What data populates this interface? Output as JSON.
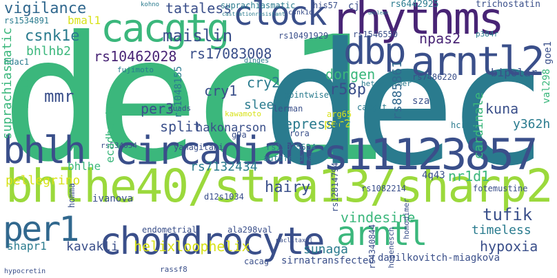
{
  "palette": {
    "teal": "#2a7b8e",
    "green": "#3bb77c",
    "lime": "#9bd93c",
    "purple": "#482475",
    "navy": "#3a4f8a",
    "blue": "#31688e",
    "yellow": "#d8e219"
  },
  "words": [
    {
      "id": "dec1",
      "text": "dec1",
      "color": "green"
    },
    {
      "id": "dec",
      "text": "dec",
      "color": "teal"
    },
    {
      "id": "bhlhe40",
      "text": "bhlhe40/stra13/sharp2",
      "color": "lime"
    },
    {
      "id": "rs11123857",
      "text": "rs11123857",
      "color": "navy"
    },
    {
      "id": "rhythms",
      "text": "rhythms",
      "color": "purple"
    },
    {
      "id": "clock",
      "text": "clock",
      "color": "navy"
    },
    {
      "id": "cacgtg",
      "text": "cacgtg",
      "color": "green"
    },
    {
      "id": "arntl2",
      "text": "arntl2",
      "color": "navy"
    },
    {
      "id": "circadian",
      "text": "circadian",
      "color": "navy"
    },
    {
      "id": "chondrocyte",
      "text": "chondrocyte",
      "color": "navy"
    },
    {
      "id": "dbp",
      "text": "dbp",
      "color": "navy"
    },
    {
      "id": "bhlh",
      "text": "bhlh",
      "color": "navy"
    },
    {
      "id": "per1",
      "text": "per1",
      "color": "blue"
    },
    {
      "id": "arntl",
      "text": "arntl",
      "color": "green"
    },
    {
      "id": "vigilance",
      "text": "vigilance",
      "color": "blue"
    },
    {
      "id": "tataless",
      "text": "tataless",
      "color": "navy"
    },
    {
      "id": "suprachiasmatic_top",
      "text": "suprachiasmatic",
      "color": "teal"
    },
    {
      "id": "csnk1d",
      "text": "csnk1d",
      "color": "navy"
    },
    {
      "id": "his57",
      "text": "his57",
      "color": "navy"
    },
    {
      "id": "cj",
      "text": "cj",
      "color": "navy"
    },
    {
      "id": "rs6442925",
      "text": "rs6442925",
      "color": "teal"
    },
    {
      "id": "trichostatin",
      "text": "trichostatin",
      "color": "navy"
    },
    {
      "id": "kohno",
      "text": "kohno",
      "color": "teal"
    },
    {
      "id": "castrationresistant",
      "text": "castrationresistant",
      "color": "teal"
    },
    {
      "id": "unclear",
      "text": "unclear",
      "color": "teal"
    },
    {
      "id": "rs1534891",
      "text": "rs1534891",
      "color": "teal"
    },
    {
      "id": "bmal1",
      "text": "bmal1",
      "color": "yellow"
    },
    {
      "id": "csnk1e",
      "text": "csnk1e",
      "color": "teal"
    },
    {
      "id": "maislin",
      "text": "maislin",
      "color": "navy"
    },
    {
      "id": "rs10491929",
      "text": "rs10491929",
      "color": "navy"
    },
    {
      "id": "rs1546550",
      "text": "rs1546550",
      "color": "navy"
    },
    {
      "id": "npas2",
      "text": "npas2",
      "color": "purple"
    },
    {
      "id": "goe1",
      "text": "goe1",
      "color": "navy"
    },
    {
      "id": "ca922",
      "text": "ca9-22",
      "color": "navy"
    },
    {
      "id": "bhlhb2",
      "text": "bhlhb2",
      "color": "green"
    },
    {
      "id": "rs10462028",
      "text": "rs10462028",
      "color": "purple"
    },
    {
      "id": "rs17083008",
      "text": "rs17083008",
      "color": "navy"
    },
    {
      "id": "val298",
      "text": "val298",
      "color": "green"
    },
    {
      "id": "rs885861",
      "text": "rs885861",
      "color": "blue"
    },
    {
      "id": "hdac1",
      "text": "hdac1",
      "color": "teal"
    },
    {
      "id": "fujimoto",
      "text": "fujimoto",
      "color": "teal"
    },
    {
      "id": "dinges",
      "text": "dinges",
      "color": "teal"
    },
    {
      "id": "p384r",
      "text": "p384r",
      "color": "teal"
    },
    {
      "id": "suprachiasmatic_v",
      "text": "suprachiasmatic",
      "color": "green"
    },
    {
      "id": "mmr",
      "text": "mmr",
      "color": "navy"
    },
    {
      "id": "dongen",
      "text": "dongen",
      "color": "green"
    },
    {
      "id": "r58p",
      "text": "r58p",
      "color": "navy"
    },
    {
      "id": "bipolar",
      "text": "bipolar",
      "color": "navy"
    },
    {
      "id": "rs7486220",
      "text": "rs7486220",
      "color": "navy"
    },
    {
      "id": "hcrt1",
      "text": "hcrt1",
      "color": "green"
    },
    {
      "id": "rs1048155",
      "text": "rs1048155",
      "color": "teal"
    },
    {
      "id": "cry2",
      "text": "cry2",
      "color": "teal"
    },
    {
      "id": "cry1",
      "text": "cry1",
      "color": "navy"
    },
    {
      "id": "cardinale",
      "text": "cardinale",
      "color": "green"
    },
    {
      "id": "ecadherin",
      "text": "ecadherin",
      "color": "green"
    },
    {
      "id": "sleep",
      "text": "sleep",
      "color": "teal"
    },
    {
      "id": "per3",
      "text": "per3",
      "color": "navy"
    },
    {
      "id": "pointwise",
      "text": "pointwise",
      "color": "teal"
    },
    {
      "id": "heterodimer",
      "text": "heterodimer",
      "color": "teal"
    },
    {
      "id": "sza",
      "text": "sza",
      "color": "navy"
    },
    {
      "id": "kuna",
      "text": "kuna",
      "color": "navy"
    },
    {
      "id": "cacgtt",
      "text": "cacgtt",
      "color": "teal"
    },
    {
      "id": "per2",
      "text": "per2",
      "color": "yellow"
    },
    {
      "id": "y362h",
      "text": "y362h",
      "color": "teal"
    },
    {
      "id": "split",
      "text": "split",
      "color": "navy"
    },
    {
      "id": "hakonarson",
      "text": "hakonarson",
      "color": "navy"
    },
    {
      "id": "repressor",
      "text": "repressor",
      "color": "teal"
    },
    {
      "id": "hcrt2",
      "text": "hcrt2",
      "color": "teal"
    },
    {
      "id": "rs534654",
      "text": "rs534654",
      "color": "navy"
    },
    {
      "id": "yanagitani",
      "text": "yanagitani",
      "color": "navy"
    },
    {
      "id": "rs13025524",
      "text": "rs13025524",
      "color": "teal"
    },
    {
      "id": "autofeedback",
      "text": "autofeedback",
      "color": "teal"
    },
    {
      "id": "nr1d1",
      "text": "nr1d1",
      "color": "green"
    },
    {
      "id": "bhlhe",
      "text": "bhlhe",
      "color": "green"
    },
    {
      "id": "rs7132434",
      "text": "rs7132434",
      "color": "teal"
    },
    {
      "id": "rs12814794",
      "text": "rs12814794",
      "color": "navy"
    },
    {
      "id": "4q43",
      "text": "4q43",
      "color": "navy"
    },
    {
      "id": "pellegrino",
      "text": "pellegrino",
      "color": "yellow"
    },
    {
      "id": "hairy",
      "text": "hairy",
      "color": "navy"
    },
    {
      "id": "rs1082214",
      "text": "rs1082214",
      "color": "navy"
    },
    {
      "id": "fotemustine",
      "text": "fotemustine",
      "color": "navy"
    },
    {
      "id": "ivanova",
      "text": "ivanova",
      "color": "navy"
    },
    {
      "id": "d12s1034",
      "text": "d12s1034",
      "color": "navy"
    },
    {
      "id": "homodimer",
      "text": "homodimer",
      "color": "navy"
    },
    {
      "id": "vindesine",
      "text": "vindesine",
      "color": "green"
    },
    {
      "id": "tufik",
      "text": "tufik",
      "color": "navy"
    },
    {
      "id": "timeless",
      "text": "timeless",
      "color": "teal"
    },
    {
      "id": "endometrial",
      "text": "endometrial",
      "color": "navy"
    },
    {
      "id": "ala298val",
      "text": "ala298val",
      "color": "navy"
    },
    {
      "id": "rs4340844",
      "text": "rs4340844",
      "color": "navy"
    },
    {
      "id": "shapr1",
      "text": "shapr1",
      "color": "teal"
    },
    {
      "id": "kavakli",
      "text": "kavakli",
      "color": "navy"
    },
    {
      "id": "helixloophelix",
      "text": "helixloophelix",
      "color": "yellow"
    },
    {
      "id": "sunaga",
      "text": "sunaga",
      "color": "teal"
    },
    {
      "id": "hypoxia",
      "text": "hypoxia",
      "color": "navy"
    },
    {
      "id": "danilkovitch",
      "text": "danilkovitch-miagkova",
      "color": "navy"
    },
    {
      "id": "cacag",
      "text": "cacag",
      "color": "navy"
    },
    {
      "id": "sirnatransfected",
      "text": "sirnatransfected",
      "color": "navy"
    },
    {
      "id": "rassf8",
      "text": "rassf8",
      "color": "navy"
    },
    {
      "id": "hogenesch",
      "text": "hogenesch",
      "color": "navy"
    },
    {
      "id": "homma",
      "text": "homma",
      "color": "navy"
    },
    {
      "id": "quads",
      "text": "quads",
      "color": "navy"
    },
    {
      "id": "lerman",
      "text": "lerman",
      "color": "navy"
    },
    {
      "id": "rora",
      "text": "rora",
      "color": "navy"
    },
    {
      "id": "g9a",
      "text": "g9a",
      "color": "navy"
    },
    {
      "id": "kawamoto",
      "text": "kawamoto",
      "color": "yellow"
    },
    {
      "id": "arg65",
      "text": "arg65",
      "color": "yellow"
    },
    {
      "id": "paclitaxel",
      "text": "paclitaxel",
      "color": "navy"
    },
    {
      "id": "hypocretin",
      "text": "hypocretin",
      "color": "navy"
    }
  ]
}
